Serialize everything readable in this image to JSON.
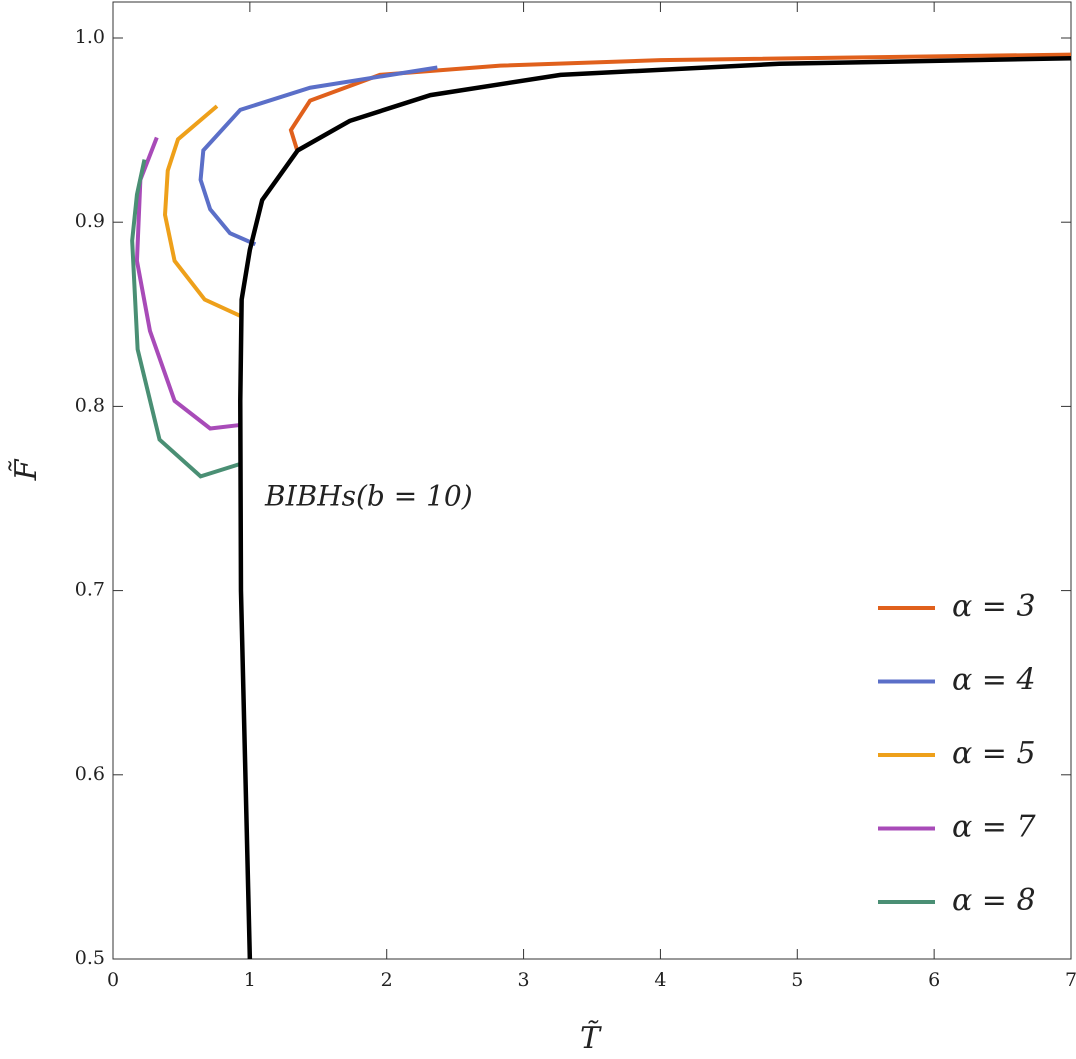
{
  "chart_data": {
    "type": "line",
    "xlabel": "T̃",
    "ylabel": "F̃",
    "annotation": "BIBHs(b = 10)",
    "xlim": [
      0,
      7
    ],
    "ylim": [
      0.5,
      1.0
    ],
    "xticks": [
      0,
      1,
      2,
      3,
      4,
      5,
      6,
      7
    ],
    "yticks": [
      0.5,
      0.6,
      0.7,
      0.8,
      0.9,
      {
        "value": 1,
        "label": "1.0"
      }
    ],
    "legend": "lower right",
    "series": [
      {
        "name": "α = 3",
        "color": "#e0601c",
        "x": [
          1.35,
          1.3,
          1.44,
          1.95,
          2.83,
          4.0,
          7.0
        ],
        "values": [
          0.938,
          0.95,
          0.966,
          0.98,
          0.985,
          0.988,
          0.991
        ]
      },
      {
        "name": "α = 4",
        "color": "#5b6fc8",
        "x": [
          1.04,
          0.855,
          0.71,
          0.64,
          0.66,
          0.93,
          1.44,
          2.37
        ],
        "values": [
          0.888,
          0.894,
          0.907,
          0.923,
          0.939,
          0.961,
          0.973,
          0.984
        ]
      },
      {
        "name": "α = 5",
        "color": "#eea01a",
        "x": [
          0.935,
          0.67,
          0.45,
          0.38,
          0.4,
          0.475,
          0.76
        ],
        "values": [
          0.849,
          0.858,
          0.879,
          0.904,
          0.928,
          0.945,
          0.963
        ]
      },
      {
        "name": "α = 7",
        "color": "#a84bb8",
        "x": [
          0.94,
          0.71,
          0.45,
          0.27,
          0.175,
          0.2,
          0.32
        ],
        "values": [
          0.79,
          0.788,
          0.803,
          0.841,
          0.879,
          0.923,
          0.946
        ]
      },
      {
        "name": "α = 8",
        "color": "#4a8f74",
        "x": [
          0.94,
          0.64,
          0.34,
          0.18,
          0.14,
          0.175,
          0.23
        ],
        "values": [
          0.769,
          0.762,
          0.782,
          0.831,
          0.89,
          0.915,
          0.934
        ]
      },
      {
        "color": "#000000",
        "x": [
          1.0,
          0.935,
          0.93,
          0.94,
          1.0,
          1.09,
          1.35,
          1.73,
          2.32,
          3.27,
          4.87,
          7.0
        ],
        "values": [
          0.5,
          0.7,
          0.803,
          0.858,
          0.885,
          0.912,
          0.939,
          0.955,
          0.969,
          0.98,
          0.986,
          0.989
        ]
      }
    ]
  }
}
